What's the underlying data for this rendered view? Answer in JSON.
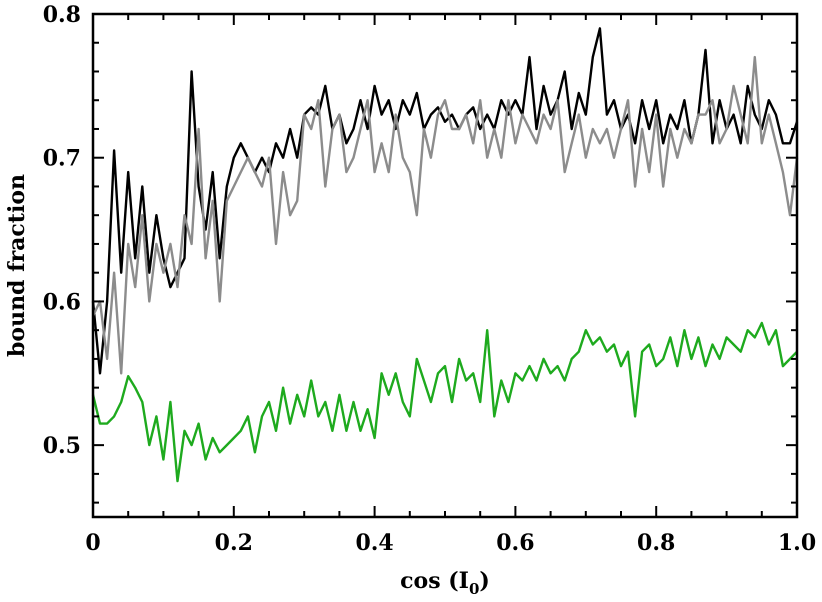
{
  "chart_data": {
    "type": "line",
    "title": "",
    "xlabel": "cos (I",
    "xlabel_subscript": "0",
    "xlabel_suffix": ")",
    "ylabel": "bound fraction",
    "xlim": [
      0.0,
      1.0
    ],
    "ylim": [
      0.45,
      0.8
    ],
    "xticks": [
      0.0,
      0.2,
      0.4,
      0.6,
      0.8,
      1.0
    ],
    "xtick_labels": [
      "0",
      "0.2",
      "0.4",
      "0.6",
      "0.8",
      "1.0"
    ],
    "yticks": [
      0.5,
      0.6,
      0.7,
      0.8
    ],
    "ytick_labels": [
      "0.5",
      "0.6",
      "0.7",
      "0.8"
    ],
    "grid": false,
    "series": [
      {
        "color": "#000000",
        "x": [
          0.0,
          0.01,
          0.02,
          0.03,
          0.04,
          0.05,
          0.06,
          0.07,
          0.08,
          0.09,
          0.1,
          0.11,
          0.12,
          0.13,
          0.14,
          0.15,
          0.16,
          0.17,
          0.18,
          0.19,
          0.2,
          0.21,
          0.22,
          0.23,
          0.24,
          0.25,
          0.26,
          0.27,
          0.28,
          0.29,
          0.3,
          0.31,
          0.32,
          0.33,
          0.34,
          0.35,
          0.36,
          0.37,
          0.38,
          0.39,
          0.4,
          0.41,
          0.42,
          0.43,
          0.44,
          0.45,
          0.46,
          0.47,
          0.48,
          0.49,
          0.5,
          0.51,
          0.52,
          0.53,
          0.54,
          0.55,
          0.56,
          0.57,
          0.58,
          0.59,
          0.6,
          0.61,
          0.62,
          0.63,
          0.64,
          0.65,
          0.66,
          0.67,
          0.68,
          0.69,
          0.7,
          0.71,
          0.72,
          0.73,
          0.74,
          0.75,
          0.76,
          0.77,
          0.78,
          0.79,
          0.8,
          0.81,
          0.82,
          0.83,
          0.84,
          0.85,
          0.86,
          0.87,
          0.88,
          0.89,
          0.9,
          0.91,
          0.92,
          0.93,
          0.94,
          0.95,
          0.96,
          0.97,
          0.98,
          0.99,
          1.0
        ],
        "values": [
          0.6,
          0.55,
          0.6,
          0.705,
          0.62,
          0.69,
          0.63,
          0.68,
          0.62,
          0.66,
          0.63,
          0.61,
          0.62,
          0.63,
          0.76,
          0.68,
          0.65,
          0.69,
          0.63,
          0.68,
          0.7,
          0.71,
          0.7,
          0.69,
          0.7,
          0.69,
          0.71,
          0.7,
          0.72,
          0.7,
          0.73,
          0.735,
          0.73,
          0.75,
          0.72,
          0.73,
          0.71,
          0.72,
          0.74,
          0.72,
          0.75,
          0.73,
          0.74,
          0.72,
          0.74,
          0.73,
          0.745,
          0.72,
          0.73,
          0.735,
          0.725,
          0.73,
          0.72,
          0.73,
          0.735,
          0.72,
          0.73,
          0.72,
          0.74,
          0.73,
          0.74,
          0.73,
          0.77,
          0.72,
          0.75,
          0.73,
          0.74,
          0.76,
          0.72,
          0.745,
          0.73,
          0.77,
          0.79,
          0.73,
          0.74,
          0.72,
          0.73,
          0.71,
          0.74,
          0.72,
          0.74,
          0.71,
          0.73,
          0.72,
          0.74,
          0.71,
          0.73,
          0.775,
          0.71,
          0.74,
          0.72,
          0.73,
          0.71,
          0.75,
          0.73,
          0.72,
          0.74,
          0.73,
          0.71,
          0.71,
          0.725
        ]
      },
      {
        "color": "#8c8c8c",
        "x": [
          0.0,
          0.01,
          0.02,
          0.03,
          0.04,
          0.05,
          0.06,
          0.07,
          0.08,
          0.09,
          0.1,
          0.11,
          0.12,
          0.13,
          0.14,
          0.15,
          0.16,
          0.17,
          0.18,
          0.19,
          0.2,
          0.21,
          0.22,
          0.23,
          0.24,
          0.25,
          0.26,
          0.27,
          0.28,
          0.29,
          0.3,
          0.31,
          0.32,
          0.33,
          0.34,
          0.35,
          0.36,
          0.37,
          0.38,
          0.39,
          0.4,
          0.41,
          0.42,
          0.43,
          0.44,
          0.45,
          0.46,
          0.47,
          0.48,
          0.49,
          0.5,
          0.51,
          0.52,
          0.53,
          0.54,
          0.55,
          0.56,
          0.57,
          0.58,
          0.59,
          0.6,
          0.61,
          0.62,
          0.63,
          0.64,
          0.65,
          0.66,
          0.67,
          0.68,
          0.69,
          0.7,
          0.71,
          0.72,
          0.73,
          0.74,
          0.75,
          0.76,
          0.77,
          0.78,
          0.79,
          0.8,
          0.81,
          0.82,
          0.83,
          0.84,
          0.85,
          0.86,
          0.87,
          0.88,
          0.89,
          0.9,
          0.91,
          0.92,
          0.93,
          0.94,
          0.95,
          0.96,
          0.97,
          0.98,
          0.99,
          1.0
        ],
        "values": [
          0.59,
          0.6,
          0.56,
          0.62,
          0.55,
          0.64,
          0.61,
          0.66,
          0.6,
          0.64,
          0.62,
          0.64,
          0.61,
          0.66,
          0.64,
          0.72,
          0.63,
          0.67,
          0.6,
          0.67,
          0.68,
          0.69,
          0.7,
          0.69,
          0.68,
          0.7,
          0.64,
          0.69,
          0.66,
          0.67,
          0.73,
          0.72,
          0.74,
          0.68,
          0.72,
          0.73,
          0.69,
          0.7,
          0.72,
          0.74,
          0.69,
          0.71,
          0.69,
          0.73,
          0.7,
          0.69,
          0.66,
          0.72,
          0.7,
          0.73,
          0.74,
          0.72,
          0.72,
          0.73,
          0.71,
          0.74,
          0.7,
          0.72,
          0.7,
          0.74,
          0.71,
          0.73,
          0.72,
          0.71,
          0.73,
          0.72,
          0.74,
          0.69,
          0.71,
          0.73,
          0.7,
          0.72,
          0.71,
          0.72,
          0.7,
          0.72,
          0.74,
          0.68,
          0.72,
          0.69,
          0.73,
          0.68,
          0.72,
          0.7,
          0.72,
          0.71,
          0.73,
          0.73,
          0.74,
          0.71,
          0.72,
          0.75,
          0.73,
          0.71,
          0.77,
          0.71,
          0.73,
          0.71,
          0.69,
          0.66,
          0.7
        ]
      },
      {
        "color": "#1eaa1e",
        "x": [
          0.0,
          0.01,
          0.02,
          0.03,
          0.04,
          0.05,
          0.06,
          0.07,
          0.08,
          0.09,
          0.1,
          0.11,
          0.12,
          0.13,
          0.14,
          0.15,
          0.16,
          0.17,
          0.18,
          0.19,
          0.2,
          0.21,
          0.22,
          0.23,
          0.24,
          0.25,
          0.26,
          0.27,
          0.28,
          0.29,
          0.3,
          0.31,
          0.32,
          0.33,
          0.34,
          0.35,
          0.36,
          0.37,
          0.38,
          0.39,
          0.4,
          0.41,
          0.42,
          0.43,
          0.44,
          0.45,
          0.46,
          0.47,
          0.48,
          0.49,
          0.5,
          0.51,
          0.52,
          0.53,
          0.54,
          0.55,
          0.56,
          0.57,
          0.58,
          0.59,
          0.6,
          0.61,
          0.62,
          0.63,
          0.64,
          0.65,
          0.66,
          0.67,
          0.68,
          0.69,
          0.7,
          0.71,
          0.72,
          0.73,
          0.74,
          0.75,
          0.76,
          0.77,
          0.78,
          0.79,
          0.8,
          0.81,
          0.82,
          0.83,
          0.84,
          0.85,
          0.86,
          0.87,
          0.88,
          0.89,
          0.9,
          0.91,
          0.92,
          0.93,
          0.94,
          0.95,
          0.96,
          0.97,
          0.98,
          0.99,
          1.0
        ],
        "values": [
          0.535,
          0.515,
          0.515,
          0.52,
          0.53,
          0.548,
          0.54,
          0.53,
          0.5,
          0.52,
          0.49,
          0.53,
          0.475,
          0.51,
          0.5,
          0.515,
          0.49,
          0.505,
          0.495,
          0.5,
          0.505,
          0.51,
          0.52,
          0.495,
          0.52,
          0.53,
          0.51,
          0.54,
          0.515,
          0.535,
          0.52,
          0.545,
          0.52,
          0.53,
          0.51,
          0.535,
          0.51,
          0.53,
          0.51,
          0.525,
          0.505,
          0.55,
          0.535,
          0.55,
          0.53,
          0.52,
          0.56,
          0.545,
          0.53,
          0.55,
          0.555,
          0.53,
          0.56,
          0.545,
          0.55,
          0.53,
          0.58,
          0.52,
          0.545,
          0.53,
          0.55,
          0.545,
          0.555,
          0.545,
          0.56,
          0.55,
          0.555,
          0.545,
          0.56,
          0.565,
          0.58,
          0.57,
          0.575,
          0.565,
          0.57,
          0.555,
          0.565,
          0.52,
          0.565,
          0.57,
          0.555,
          0.56,
          0.575,
          0.555,
          0.58,
          0.56,
          0.575,
          0.555,
          0.57,
          0.56,
          0.575,
          0.57,
          0.565,
          0.58,
          0.575,
          0.585,
          0.57,
          0.58,
          0.555,
          0.56,
          0.565
        ]
      }
    ]
  }
}
